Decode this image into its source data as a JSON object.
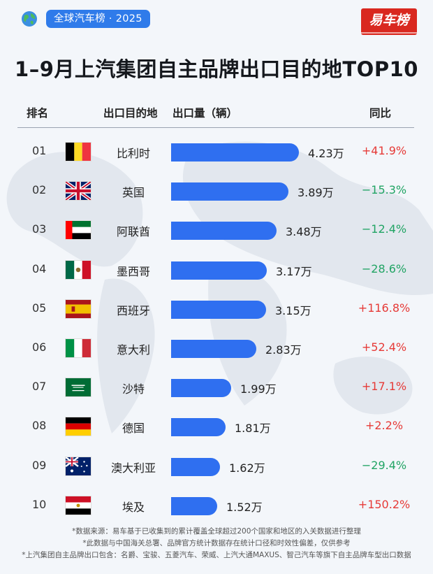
{
  "badge": "全球汽车榜 · 2025",
  "logo_text": "易车榜",
  "title": "1–9月上汽集团自主品牌出口目的地TOP10",
  "headers": {
    "rank": "排名",
    "destination": "出口目的地",
    "volume": "出口量（辆）",
    "yoy": "同比"
  },
  "chart_data": {
    "type": "bar",
    "orientation": "horizontal",
    "unit": "万",
    "categories": [
      "比利时",
      "英国",
      "阿联酋",
      "墨西哥",
      "西班牙",
      "意大利",
      "沙特",
      "德国",
      "澳大利亚",
      "埃及"
    ],
    "values": [
      4.23,
      3.89,
      3.48,
      3.17,
      3.15,
      2.83,
      1.99,
      1.81,
      1.62,
      1.52
    ],
    "yoy": [
      "+41.9%",
      "−15.3%",
      "−12.4%",
      "−28.6%",
      "+116.8%",
      "+52.4%",
      "+17.1%",
      "+2.2%",
      "−29.4%",
      "+150.2%"
    ],
    "bar_color": "#2f6ff0"
  },
  "rows": [
    {
      "rank": "01",
      "country": "比利时",
      "value_label": "4.23万",
      "yoy": "+41.9%",
      "trend": "up",
      "flag": "belgium-flag-icon"
    },
    {
      "rank": "02",
      "country": "英国",
      "value_label": "3.89万",
      "yoy": "−15.3%",
      "trend": "down",
      "flag": "uk-flag-icon"
    },
    {
      "rank": "03",
      "country": "阿联酋",
      "value_label": "3.48万",
      "yoy": "−12.4%",
      "trend": "down",
      "flag": "uae-flag-icon"
    },
    {
      "rank": "04",
      "country": "墨西哥",
      "value_label": "3.17万",
      "yoy": "−28.6%",
      "trend": "down",
      "flag": "mexico-flag-icon"
    },
    {
      "rank": "05",
      "country": "西班牙",
      "value_label": "3.15万",
      "yoy": "+116.8%",
      "trend": "up",
      "flag": "spain-flag-icon"
    },
    {
      "rank": "06",
      "country": "意大利",
      "value_label": "2.83万",
      "yoy": "+52.4%",
      "trend": "up",
      "flag": "italy-flag-icon"
    },
    {
      "rank": "07",
      "country": "沙特",
      "value_label": "1.99万",
      "yoy": "+17.1%",
      "trend": "up",
      "flag": "saudi-flag-icon"
    },
    {
      "rank": "08",
      "country": "德国",
      "value_label": "1.81万",
      "yoy": "+2.2%",
      "trend": "up",
      "flag": "germany-flag-icon"
    },
    {
      "rank": "09",
      "country": "澳大利亚",
      "value_label": "1.62万",
      "yoy": "−29.4%",
      "trend": "down",
      "flag": "australia-flag-icon"
    },
    {
      "rank": "10",
      "country": "埃及",
      "value_label": "1.52万",
      "yoy": "+150.2%",
      "trend": "up",
      "flag": "egypt-flag-icon"
    }
  ],
  "colors": {
    "up": "#e63a37",
    "down": "#21a464",
    "accent": "#2f7bea",
    "logo_bg": "#d9281f"
  },
  "notes": [
    "*数据来源：易车基于已收集到的累计覆盖全球超过200个国家和地区的入关数据进行整理",
    "*此数据与中国海关总署、品牌官方统计数据存在统计口径和时效性偏差，仅供参考",
    "*上汽集团自主品牌出口包含：名爵、宝骏、五菱汽车、荣威、上汽大通MAXUS、智己汽车等旗下自主品牌车型出口数据"
  ]
}
